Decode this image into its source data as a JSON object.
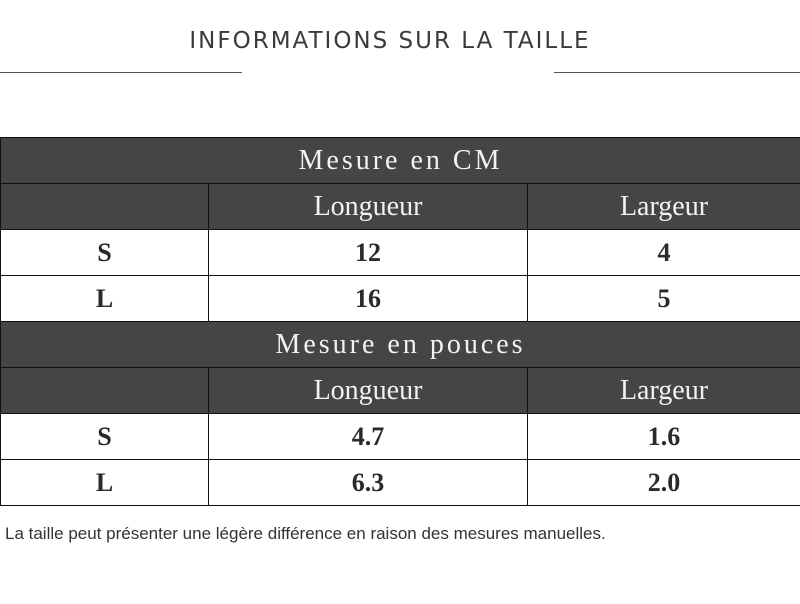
{
  "title": "INFORMATIONS SUR LA TAILLE",
  "sections": [
    {
      "heading": "Mesure en CM",
      "columns": [
        "Longueur",
        "Largeur"
      ],
      "rows": [
        {
          "size": "S",
          "length": "12",
          "width": "4"
        },
        {
          "size": "L",
          "length": "16",
          "width": "5"
        }
      ]
    },
    {
      "heading": "Mesure en pouces",
      "columns": [
        "Longueur",
        "Largeur"
      ],
      "rows": [
        {
          "size": "S",
          "length": "4.7",
          "width": "1.6"
        },
        {
          "size": "L",
          "length": "6.3",
          "width": "2.0"
        }
      ]
    }
  ],
  "note": "La taille peut présenter une légère différence en raison des mesures manuelles."
}
